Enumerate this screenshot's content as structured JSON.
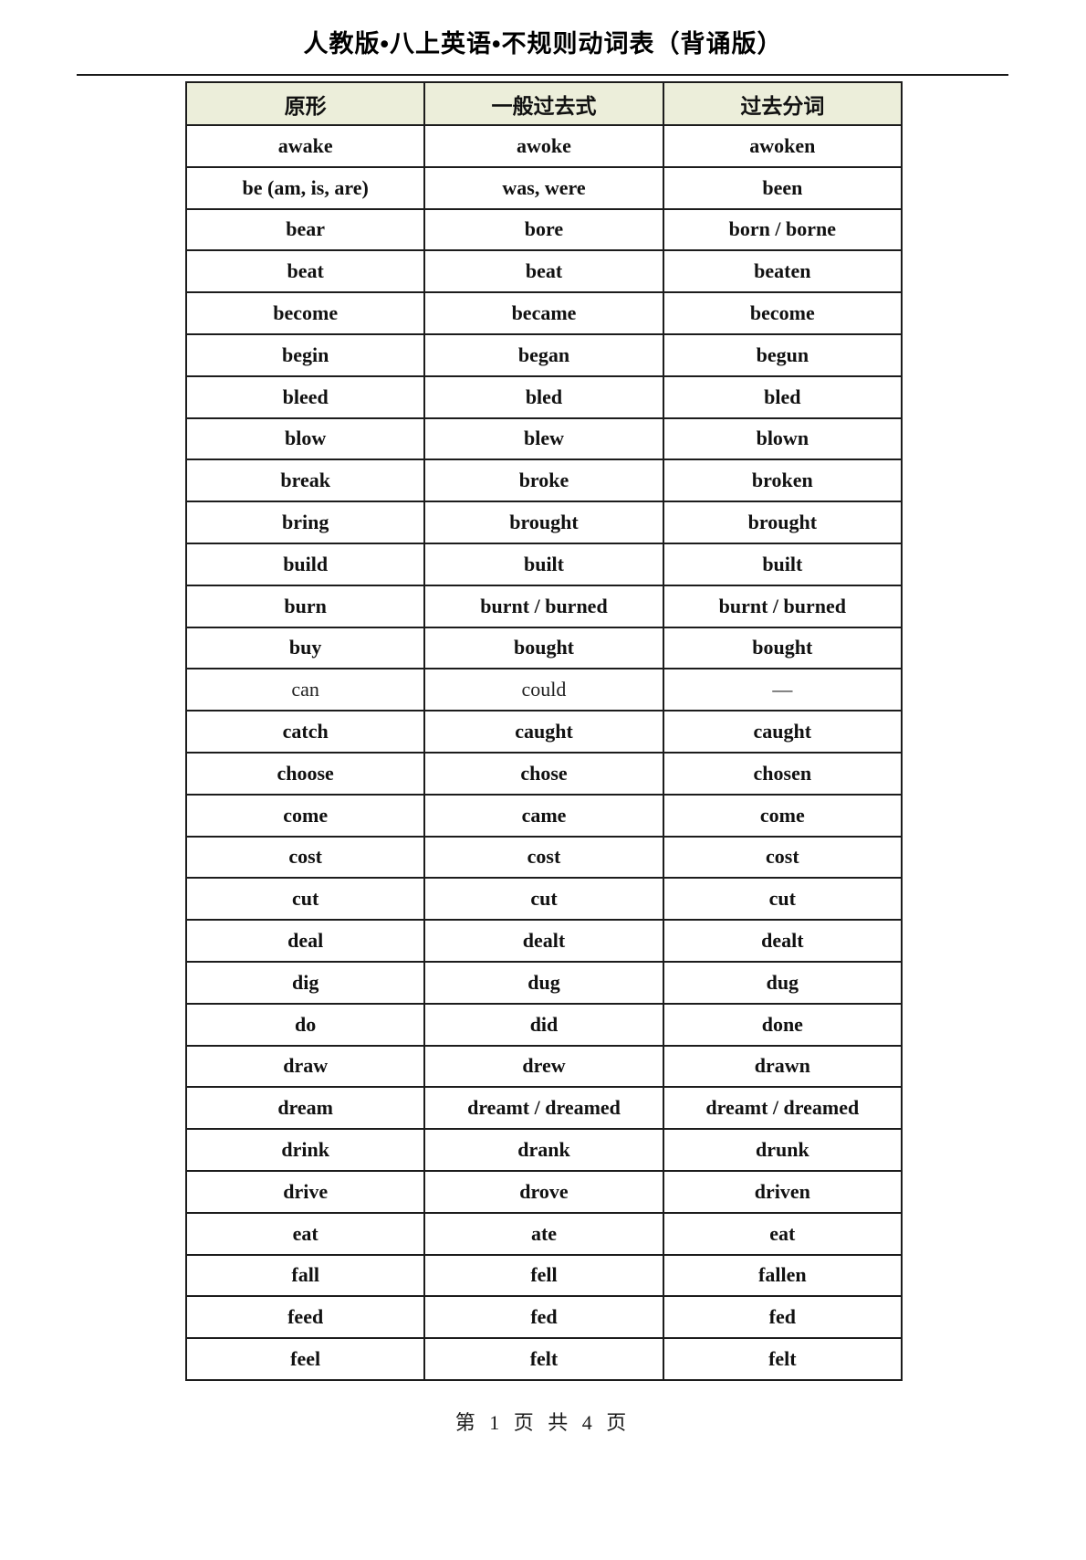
{
  "page": {
    "title": "人教版•八上英语•不规则动词表（背诵版）",
    "footer": "第 1 页 共 4 页"
  },
  "colors": {
    "header_bg": "#eceeda",
    "border": "#1c1c1c",
    "text": "#111111"
  },
  "table": {
    "headers": [
      "原形",
      "一般过去式",
      "过去分词"
    ],
    "rows": [
      {
        "base": "awake",
        "past": "awoke",
        "participle": "awoken",
        "bold": true
      },
      {
        "base": "be (am, is, are)",
        "past": "was, were",
        "participle": "been",
        "bold": true
      },
      {
        "base": "bear",
        "past": "bore",
        "participle": "born / borne",
        "bold": true
      },
      {
        "base": "beat",
        "past": "beat",
        "participle": "beaten",
        "bold": true
      },
      {
        "base": "become",
        "past": "became",
        "participle": "become",
        "bold": true
      },
      {
        "base": "begin",
        "past": "began",
        "participle": "begun",
        "bold": true
      },
      {
        "base": "bleed",
        "past": "bled",
        "participle": "bled",
        "bold": true
      },
      {
        "base": "blow",
        "past": "blew",
        "participle": "blown",
        "bold": true
      },
      {
        "base": "break",
        "past": "broke",
        "participle": "broken",
        "bold": true
      },
      {
        "base": "bring",
        "past": "brought",
        "participle": "brought",
        "bold": true
      },
      {
        "base": "build",
        "past": "built",
        "participle": "built",
        "bold": true
      },
      {
        "base": "burn",
        "past": "burnt / burned",
        "participle": "burnt / burned",
        "bold": true
      },
      {
        "base": "buy",
        "past": "bought",
        "participle": "bought",
        "bold": true
      },
      {
        "base": "can",
        "past": "could",
        "participle": "—",
        "bold": false
      },
      {
        "base": "catch",
        "past": "caught",
        "participle": "caught",
        "bold": true
      },
      {
        "base": "choose",
        "past": "chose",
        "participle": "chosen",
        "bold": true
      },
      {
        "base": "come",
        "past": "came",
        "participle": "come",
        "bold": true
      },
      {
        "base": "cost",
        "past": "cost",
        "participle": "cost",
        "bold": true
      },
      {
        "base": "cut",
        "past": "cut",
        "participle": "cut",
        "bold": true
      },
      {
        "base": "deal",
        "past": "dealt",
        "participle": "dealt",
        "bold": true
      },
      {
        "base": "dig",
        "past": "dug",
        "participle": "dug",
        "bold": true
      },
      {
        "base": "do",
        "past": "did",
        "participle": "done",
        "bold": true
      },
      {
        "base": "draw",
        "past": "drew",
        "participle": "drawn",
        "bold": true
      },
      {
        "base": "dream",
        "past": "dreamt / dreamed",
        "participle": "dreamt / dreamed",
        "bold": true
      },
      {
        "base": "drink",
        "past": "drank",
        "participle": "drunk",
        "bold": true
      },
      {
        "base": "drive",
        "past": "drove",
        "participle": "driven",
        "bold": true
      },
      {
        "base": "eat",
        "past": "ate",
        "participle": "eat",
        "bold": true
      },
      {
        "base": "fall",
        "past": "fell",
        "participle": "fallen",
        "bold": true
      },
      {
        "base": "feed",
        "past": "fed",
        "participle": "fed",
        "bold": true
      },
      {
        "base": "feel",
        "past": "felt",
        "participle": "felt",
        "bold": true
      }
    ]
  }
}
